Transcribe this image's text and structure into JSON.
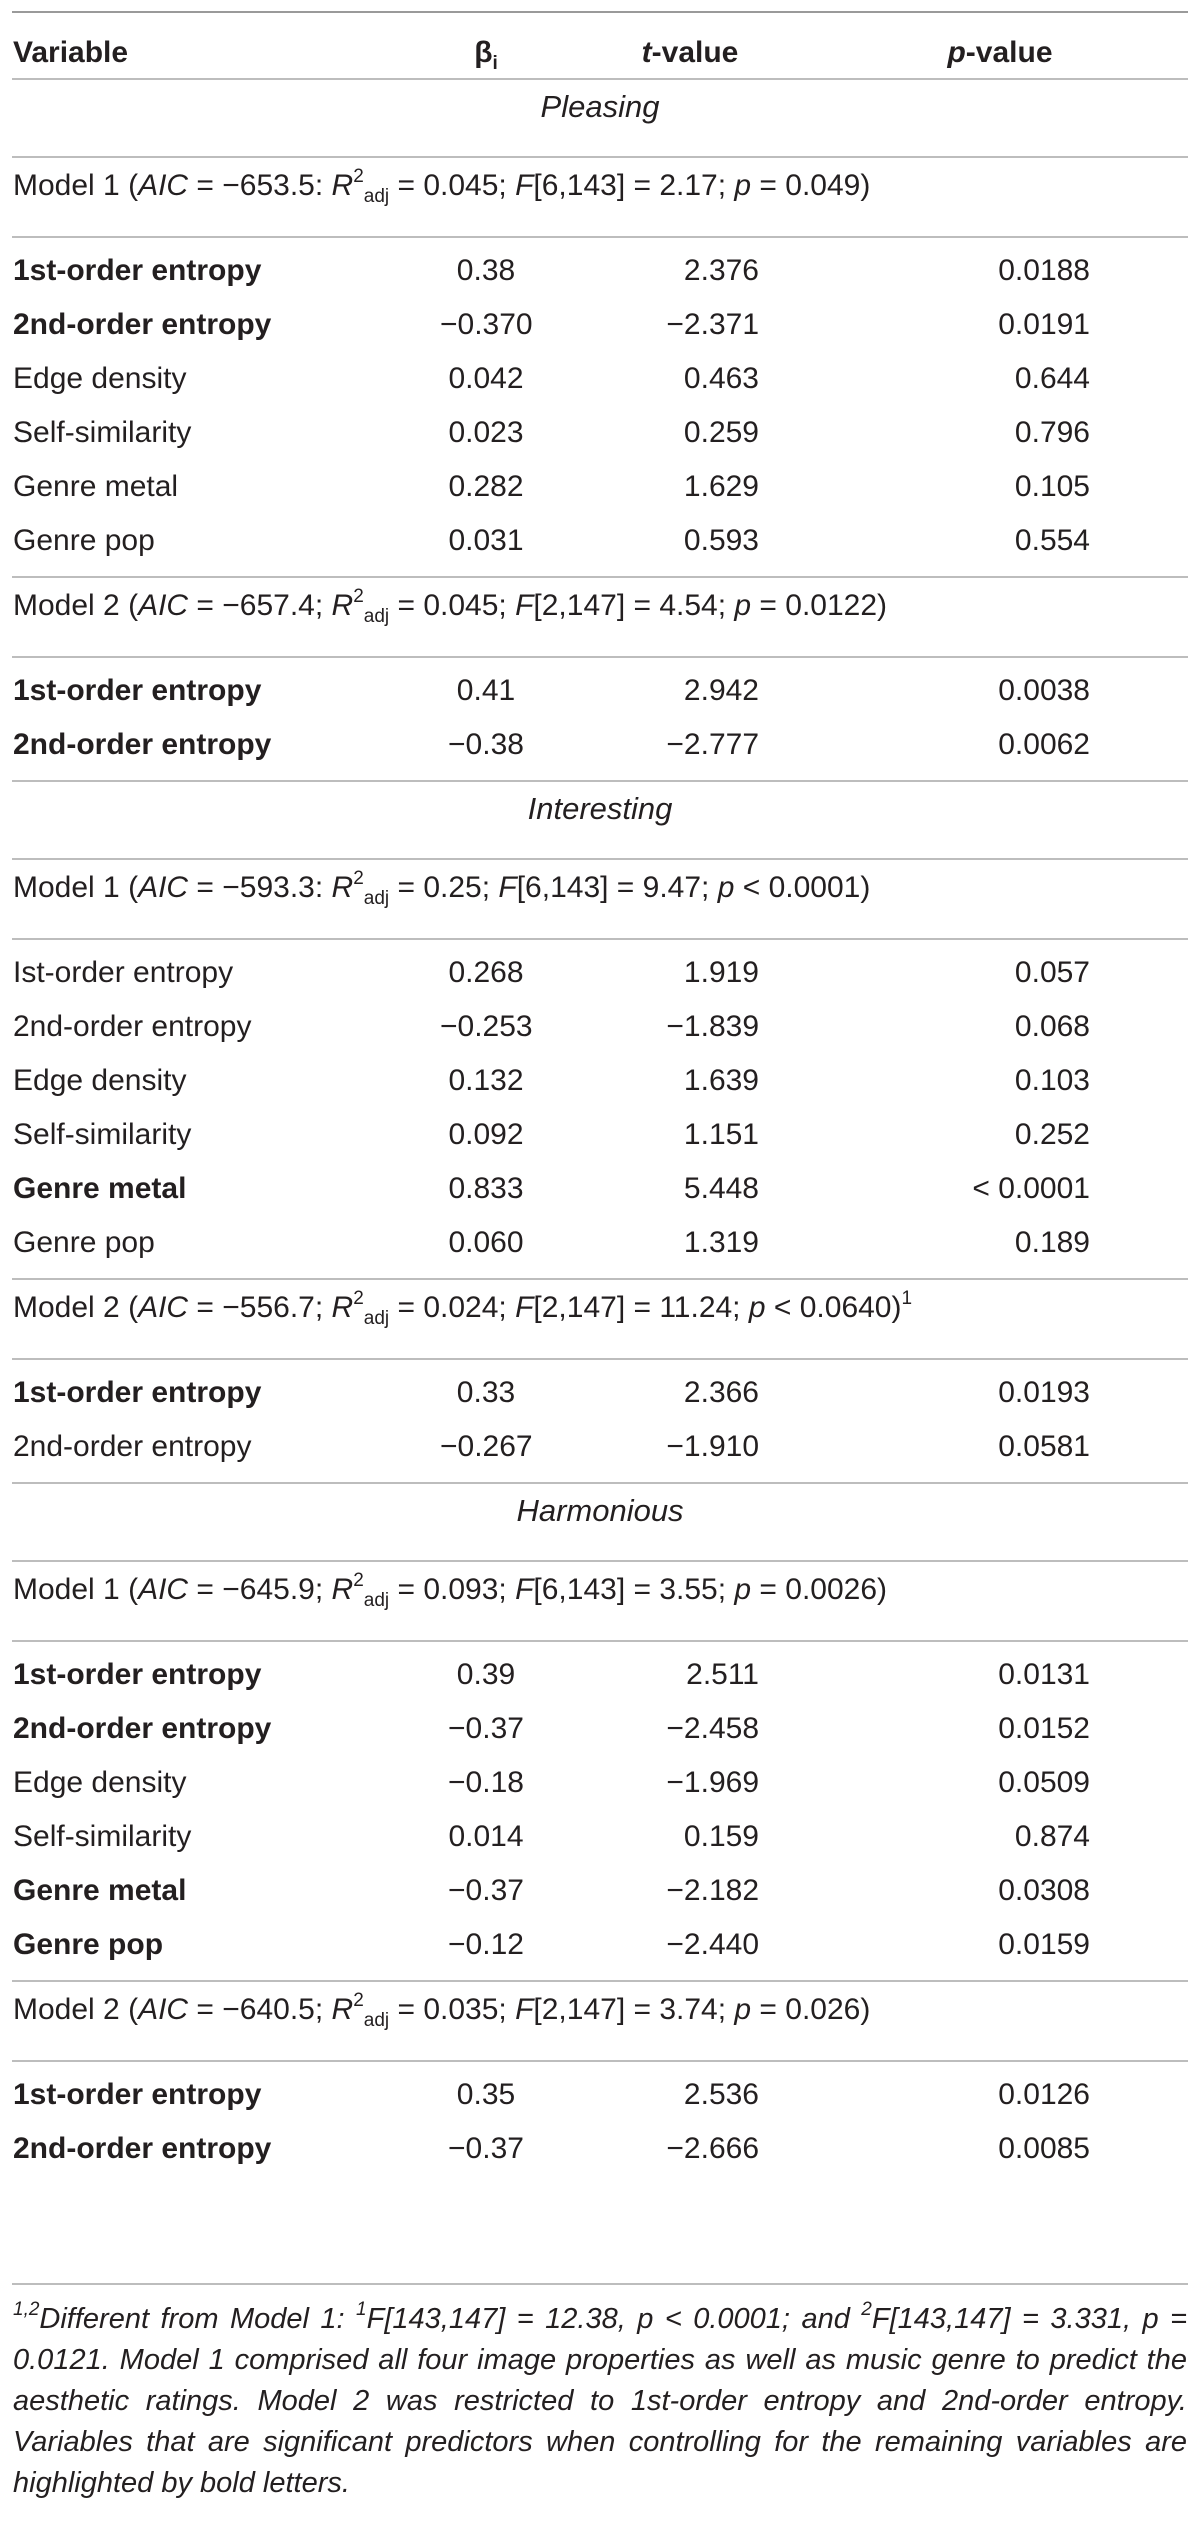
{
  "header": {
    "variable": "Variable",
    "beta": "β",
    "beta_sub": "i",
    "t_prefix": "t",
    "t_suffix": "-value",
    "p_prefix": "p",
    "p_suffix": "-value"
  },
  "sections": [
    {
      "title": "Pleasing",
      "models": [
        {
          "name": "Model 1",
          "aic": "AIC",
          "aic_val": " = −653.5: ",
          "r2": "R",
          "r2_exp": "2",
          "r2_sub": "adj",
          "r2_val": " = 0.045; ",
          "f": "F",
          "f_val": "[6,143] = 2.17; ",
          "p": "p",
          "p_val": " = 0.049)",
          "suffix": "",
          "rows": [
            {
              "variable": "1st-order entropy",
              "beta": "0.38",
              "t": "2.376",
              "p": "0.0188",
              "bold": true
            },
            {
              "variable": "2nd-order entropy",
              "beta": "−0.370",
              "t": "−2.371",
              "p": "0.0191",
              "bold": true
            },
            {
              "variable": "Edge density",
              "beta": "0.042",
              "t": "0.463",
              "p": "0.644",
              "bold": false
            },
            {
              "variable": "Self-similarity",
              "beta": "0.023",
              "t": "0.259",
              "p": "0.796",
              "bold": false
            },
            {
              "variable": "Genre metal",
              "beta": "0.282",
              "t": "1.629",
              "p": "0.105",
              "bold": false
            },
            {
              "variable": "Genre pop",
              "beta": "0.031",
              "t": "0.593",
              "p": "0.554",
              "bold": false
            }
          ]
        },
        {
          "name": "Model 2",
          "aic": "AIC",
          "aic_val": " = −657.4; ",
          "r2": "R",
          "r2_exp": "2",
          "r2_sub": "adj",
          "r2_val": " = 0.045; ",
          "f": "F",
          "f_val": "[2,147] = 4.54; ",
          "p": "p",
          "p_val": " = 0.0122)",
          "suffix": "",
          "rows": [
            {
              "variable": "1st-order entropy",
              "beta": "0.41",
              "t": "2.942",
              "p": "0.0038",
              "bold": true
            },
            {
              "variable": "2nd-order entropy",
              "beta": "−0.38",
              "t": "−2.777",
              "p": "0.0062",
              "bold": true
            }
          ]
        }
      ]
    },
    {
      "title": "Interesting",
      "models": [
        {
          "name": "Model 1",
          "aic": "AIC",
          "aic_val": " = −593.3: ",
          "r2": "R",
          "r2_exp": "2",
          "r2_sub": "adj",
          "r2_val": " = 0.25; ",
          "f": "F",
          "f_val": "[6,143] = 9.47; ",
          "p": "p",
          "p_val": " < 0.0001)",
          "suffix": "",
          "rows": [
            {
              "variable": "Ist-order entropy",
              "beta": "0.268",
              "t": "1.919",
              "p": "0.057",
              "bold": false
            },
            {
              "variable": "2nd-order entropy",
              "beta": "−0.253",
              "t": "−1.839",
              "p": "0.068",
              "bold": false
            },
            {
              "variable": "Edge density",
              "beta": "0.132",
              "t": "1.639",
              "p": "0.103",
              "bold": false
            },
            {
              "variable": "Self-similarity",
              "beta": "0.092",
              "t": "1.151",
              "p": "0.252",
              "bold": false
            },
            {
              "variable": "Genre metal",
              "beta": "0.833",
              "t": "5.448",
              "p": "< 0.0001",
              "bold": true
            },
            {
              "variable": "Genre pop",
              "beta": "0.060",
              "t": "1.319",
              "p": "0.189",
              "bold": false
            }
          ]
        },
        {
          "name": "Model 2",
          "aic": "AIC",
          "aic_val": " = −556.7; ",
          "r2": "R",
          "r2_exp": "2",
          "r2_sub": "adj",
          "r2_val": " = 0.024; ",
          "f": "F",
          "f_val": "[2,147] = 11.24; ",
          "p": "p",
          "p_val": " < 0.0640)",
          "suffix": "1",
          "rows": [
            {
              "variable": "1st-order entropy",
              "beta": "0.33",
              "t": "2.366",
              "p": "0.0193",
              "bold": true
            },
            {
              "variable": "2nd-order entropy",
              "beta": "−0.267",
              "t": "−1.910",
              "p": "0.0581",
              "bold": false
            }
          ]
        }
      ]
    },
    {
      "title": "Harmonious",
      "models": [
        {
          "name": "Model 1",
          "aic": "AIC",
          "aic_val": " = −645.9; ",
          "r2": "R",
          "r2_exp": "2",
          "r2_sub": "adj",
          "r2_val": " = 0.093; ",
          "f": "F",
          "f_val": "[6,143] = 3.55; ",
          "p": "p",
          "p_val": " = 0.0026)",
          "suffix": "",
          "rows": [
            {
              "variable": "1st-order entropy",
              "beta": "0.39",
              "t": "2.511",
              "p": "0.0131",
              "bold": true
            },
            {
              "variable": "2nd-order entropy",
              "beta": "−0.37",
              "t": "−2.458",
              "p": "0.0152",
              "bold": true
            },
            {
              "variable": "Edge density",
              "beta": "−0.18",
              "t": "−1.969",
              "p": "0.0509",
              "bold": false
            },
            {
              "variable": "Self-similarity",
              "beta": "0.014",
              "t": "0.159",
              "p": "0.874",
              "bold": false
            },
            {
              "variable": "Genre metal",
              "beta": "−0.37",
              "t": "−2.182",
              "p": "0.0308",
              "bold": true
            },
            {
              "variable": "Genre pop",
              "beta": "−0.12",
              "t": "−2.440",
              "p": "0.0159",
              "bold": true
            }
          ]
        },
        {
          "name": "Model 2",
          "aic": "AIC",
          "aic_val": " = −640.5; ",
          "r2": "R",
          "r2_exp": "2",
          "r2_sub": "adj",
          "r2_val": " = 0.035; ",
          "f": "F",
          "f_val": "[2,147] = 3.74; ",
          "p": "p",
          "p_val": " = 0.026)",
          "suffix": "",
          "rows": [
            {
              "variable": "1st-order entropy",
              "beta": "0.35",
              "t": "2.536",
              "p": "0.0126",
              "bold": true
            },
            {
              "variable": "2nd-order entropy",
              "beta": "−0.37",
              "t": "−2.666",
              "p": "0.0085",
              "bold": true
            }
          ]
        }
      ]
    }
  ],
  "footnote": {
    "marks": "1,2",
    "lead": "Different from Model 1: ",
    "m1": "1",
    "t1": "F[143,147] = 12.38, p < 0.0001; and ",
    "m2": "2",
    "t2": "F[143,147] = 3.331, p = 0.0121. Model 1 comprised all four image properties as well as music genre to predict the aesthetic ratings. Model 2 was restricted to 1st-order entropy and 2nd-order entropy. Variables that are significant predictors when controlling for the remaining variables are highlighted by bold letters."
  }
}
